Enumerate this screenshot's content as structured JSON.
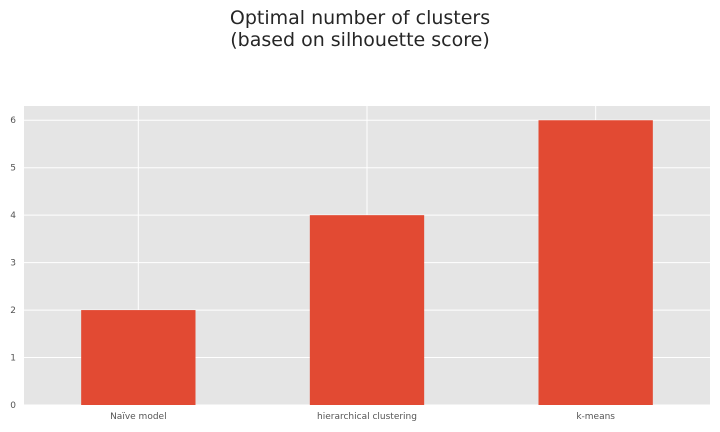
{
  "chart_data": {
    "type": "bar",
    "title_line1": "Optimal number of clusters",
    "title_line2": " (based on silhouette score)",
    "categories": [
      "Naïve model",
      "hierarchical clustering",
      "k-means"
    ],
    "values": [
      2,
      4,
      6
    ],
    "ylim": [
      0,
      6.3
    ],
    "yticks": [
      0,
      1,
      2,
      3,
      4,
      5,
      6
    ],
    "xlabel": "",
    "ylabel": "",
    "grid": true,
    "colors": {
      "bar": "#E24A33",
      "plot_background": "#E5E5E5",
      "grid": "#FFFFFF",
      "text": "#555555"
    }
  }
}
